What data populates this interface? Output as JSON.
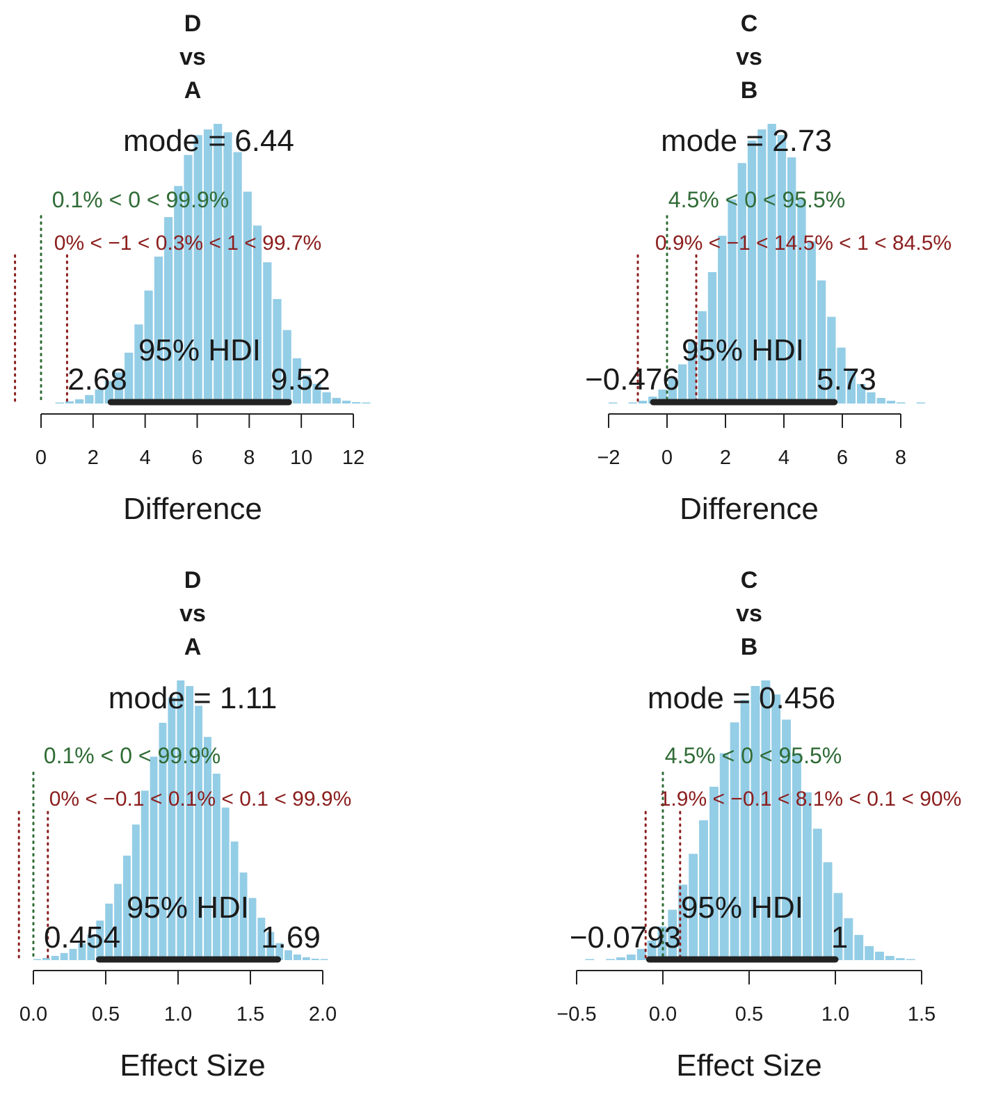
{
  "colors": {
    "bars": "#94cde6",
    "hdi_line": "#222222",
    "zero_line": "#2f6b35",
    "rope_line": "#8b1e1e",
    "text": "#1a1a1a"
  },
  "panels": [
    {
      "title_lines": [
        "D",
        "vs",
        "A"
      ],
      "mode_label": "mode = 6.44",
      "zero_label": "0.1% < 0 < 99.9%",
      "rope_label": "0% < −1 < 0.3% < 1 < 99.7%",
      "hdi_label": "95% HDI",
      "hdi_low_label": "2.68",
      "hdi_high_label": "9.52",
      "xlabel": "Difference",
      "tick_labels": [
        "0",
        "2",
        "4",
        "6",
        "8",
        "10",
        "12"
      ]
    },
    {
      "title_lines": [
        "C",
        "vs",
        "B"
      ],
      "mode_label": "mode = 2.73",
      "zero_label": "4.5% < 0 < 95.5%",
      "rope_label": "0.9% < −1 < 14.5% < 1 < 84.5%",
      "hdi_label": "95% HDI",
      "hdi_low_label": "−0.476",
      "hdi_high_label": "5.73",
      "xlabel": "Difference",
      "tick_labels": [
        "−2",
        "0",
        "2",
        "4",
        "6",
        "8"
      ]
    },
    {
      "title_lines": [
        "D",
        "vs",
        "A"
      ],
      "mode_label": "mode = 1.11",
      "zero_label": "0.1% < 0 < 99.9%",
      "rope_label": "0% < −0.1 < 0.1% < 0.1 < 99.9%",
      "hdi_label": "95% HDI",
      "hdi_low_label": "0.454",
      "hdi_high_label": "1.69",
      "xlabel": "Effect Size",
      "tick_labels": [
        "0.0",
        "0.5",
        "1.0",
        "1.5",
        "2.0"
      ]
    },
    {
      "title_lines": [
        "C",
        "vs",
        "B"
      ],
      "mode_label": "mode = 0.456",
      "zero_label": "4.5% < 0 < 95.5%",
      "rope_label": "1.9% < −0.1 < 8.1% < 0.1 < 90%",
      "hdi_label": "95% HDI",
      "hdi_low_label": "−0.0793",
      "hdi_high_label": "1",
      "xlabel": "Effect Size",
      "tick_labels": [
        "−0.5",
        "0.0",
        "0.5",
        "1.0",
        "1.5"
      ]
    }
  ],
  "chart_data": [
    {
      "type": "bar",
      "subtype": "histogram",
      "title": "D vs A",
      "xlabel": "Difference",
      "xlim": [
        0,
        12
      ],
      "ticks": [
        0,
        2,
        4,
        6,
        8,
        10,
        12
      ],
      "mode": 6.44,
      "hdi": [
        2.68,
        9.52
      ],
      "comp_value": 0,
      "pct_below_comp": 0.1,
      "pct_above_comp": 99.9,
      "rope": [
        -1,
        1
      ],
      "rope_pcts": [
        0,
        0.3,
        99.7
      ],
      "bin_width": 0.38,
      "bin_start": 0.55,
      "densities": [
        0.003,
        0.008,
        0.015,
        0.03,
        0.05,
        0.08,
        0.11,
        0.18,
        0.28,
        0.4,
        0.52,
        0.66,
        0.77,
        0.88,
        0.95,
        0.97,
        0.99,
        0.96,
        0.89,
        0.75,
        0.63,
        0.5,
        0.37,
        0.26,
        0.16,
        0.1,
        0.07,
        0.04,
        0.02,
        0.01,
        0.005,
        0.002
      ],
      "grid": false,
      "legend": "none"
    },
    {
      "type": "bar",
      "subtype": "histogram",
      "title": "C vs B",
      "xlabel": "Difference",
      "xlim": [
        -2,
        8
      ],
      "ticks": [
        -2,
        0,
        2,
        4,
        6,
        8
      ],
      "mode": 2.73,
      "hdi": [
        -0.476,
        5.73
      ],
      "comp_value": 0,
      "pct_below_comp": 4.5,
      "pct_above_comp": 95.5,
      "rope": [
        -1,
        1
      ],
      "rope_pcts": [
        0.9,
        14.5,
        84.5
      ],
      "bin_width": 0.34,
      "bin_start": -2.0,
      "densities": [
        0.002,
        0,
        0.004,
        0.01,
        0.025,
        0.05,
        0.09,
        0.14,
        0.22,
        0.33,
        0.47,
        0.6,
        0.73,
        0.86,
        0.94,
        0.98,
        1.0,
        0.96,
        0.88,
        0.73,
        0.58,
        0.44,
        0.31,
        0.2,
        0.12,
        0.07,
        0.04,
        0.02,
        0.01,
        0.004,
        0,
        0.002
      ],
      "grid": false,
      "legend": "none"
    },
    {
      "type": "bar",
      "subtype": "histogram",
      "title": "D vs A",
      "xlabel": "Effect Size",
      "xlim": [
        0,
        2
      ],
      "ticks": [
        0.0,
        0.5,
        1.0,
        1.5,
        2.0
      ],
      "mode": 1.11,
      "hdi": [
        0.454,
        1.69
      ],
      "comp_value": 0,
      "pct_below_comp": 0.1,
      "pct_above_comp": 99.9,
      "rope": [
        -0.1,
        0.1
      ],
      "rope_pcts": [
        0,
        0.1,
        99.9
      ],
      "bin_width": 0.062,
      "bin_start": 0.0,
      "densities": [
        0.003,
        0.008,
        0.015,
        0.025,
        0.04,
        0.06,
        0.09,
        0.14,
        0.2,
        0.27,
        0.37,
        0.48,
        0.6,
        0.72,
        0.84,
        0.93,
        0.99,
        0.97,
        0.9,
        0.79,
        0.66,
        0.54,
        0.42,
        0.31,
        0.22,
        0.15,
        0.1,
        0.06,
        0.035,
        0.02,
        0.01,
        0.005,
        0.003
      ],
      "grid": false,
      "legend": "none"
    },
    {
      "type": "bar",
      "subtype": "histogram",
      "title": "C vs B",
      "xlabel": "Effect Size",
      "xlim": [
        -0.5,
        1.5
      ],
      "ticks": [
        -0.5,
        0.0,
        0.5,
        1.0,
        1.5
      ],
      "mode": 0.456,
      "hdi": [
        -0.0793,
        1
      ],
      "comp_value": 0,
      "pct_below_comp": 4.5,
      "pct_above_comp": 95.5,
      "rope": [
        -0.1,
        0.1
      ],
      "rope_pcts": [
        1.9,
        8.1,
        90
      ],
      "bin_width": 0.06,
      "bin_start": -0.45,
      "densities": [
        0.002,
        0,
        0.004,
        0.01,
        0.02,
        0.04,
        0.07,
        0.12,
        0.18,
        0.27,
        0.38,
        0.5,
        0.62,
        0.74,
        0.85,
        0.93,
        0.98,
        1.0,
        0.95,
        0.86,
        0.74,
        0.6,
        0.47,
        0.35,
        0.24,
        0.15,
        0.09,
        0.05,
        0.03,
        0.015,
        0.007,
        0.003
      ],
      "grid": false,
      "legend": "none"
    }
  ]
}
